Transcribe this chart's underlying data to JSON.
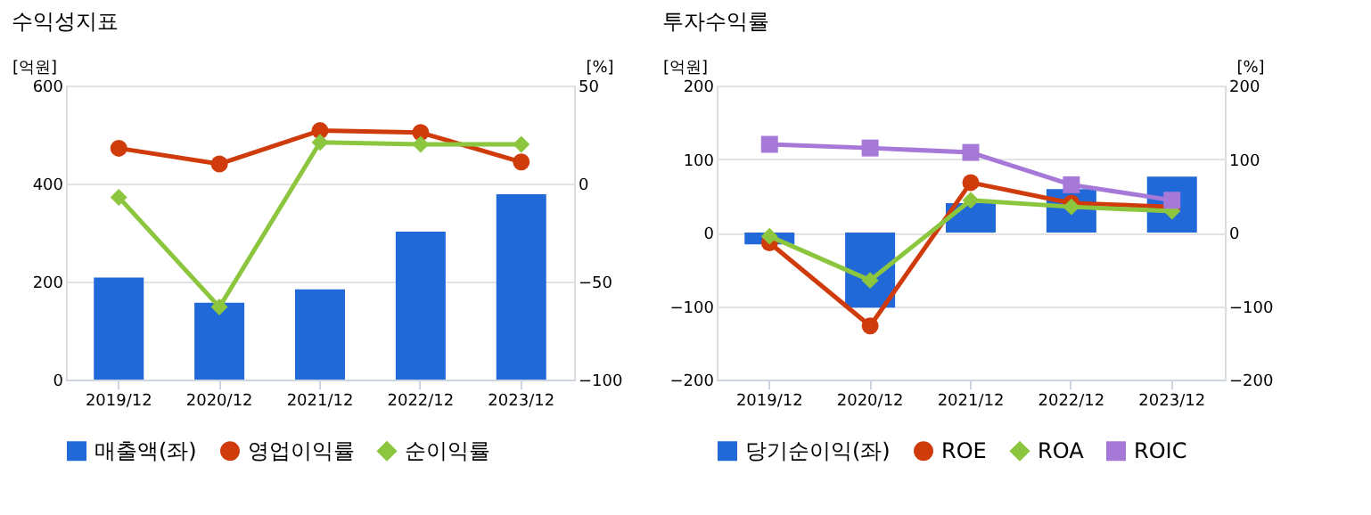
{
  "chart_data": [
    {
      "type": "bar",
      "title": "수익성지표",
      "ylabel": "[억원]",
      "y2label": "[%]",
      "categories": [
        "2019/12",
        "2020/12",
        "2021/12",
        "2022/12",
        "2023/12"
      ],
      "ylim": [
        0,
        600
      ],
      "yticks": [
        0,
        200,
        400,
        600
      ],
      "y2lim": [
        -100,
        50
      ],
      "y2ticks": [
        -100,
        -50,
        0,
        50
      ],
      "grid": "y",
      "legend": "bottom",
      "series": [
        {
          "name": "매출액(좌)",
          "axis": "y",
          "color": "#2168d9",
          "values": [
            208,
            157,
            184,
            302,
            378
          ]
        },
        {
          "name": "영업이익률",
          "type": "line",
          "axis": "y2",
          "color": "#d03b0b",
          "marker": "circle",
          "values": [
            18,
            10,
            27,
            26,
            11
          ]
        },
        {
          "name": "순이익률",
          "type": "line",
          "axis": "y2",
          "color": "#8cc63e",
          "marker": "diamond",
          "values": [
            -7,
            -63,
            21,
            20,
            20
          ]
        }
      ]
    },
    {
      "type": "bar",
      "title": "투자수익률",
      "ylabel": "[억원]",
      "y2label": "[%]",
      "categories": [
        "2019/12",
        "2020/12",
        "2021/12",
        "2022/12",
        "2023/12"
      ],
      "ylim": [
        -200,
        200
      ],
      "yticks": [
        -200,
        -100,
        0,
        100,
        200
      ],
      "y2lim": [
        -200,
        200
      ],
      "y2ticks": [
        -200,
        -100,
        0,
        100,
        200
      ],
      "grid": "y",
      "legend": "bottom",
      "series": [
        {
          "name": "당기순이익(좌)",
          "axis": "y",
          "color": "#2168d9",
          "values": [
            -16,
            -102,
            40,
            59,
            76
          ]
        },
        {
          "name": "ROE",
          "type": "line",
          "axis": "y2",
          "color": "#d03b0b",
          "marker": "circle",
          "values": [
            -14,
            -127,
            68,
            40,
            35
          ]
        },
        {
          "name": "ROA",
          "type": "line",
          "axis": "y2",
          "color": "#8cc63e",
          "marker": "diamond",
          "values": [
            -5,
            -65,
            44,
            35,
            29
          ]
        },
        {
          "name": "ROIC",
          "type": "line",
          "axis": "y2",
          "color": "#a678d8",
          "marker": "square",
          "values": [
            120,
            115,
            109,
            65,
            44
          ]
        }
      ]
    }
  ]
}
